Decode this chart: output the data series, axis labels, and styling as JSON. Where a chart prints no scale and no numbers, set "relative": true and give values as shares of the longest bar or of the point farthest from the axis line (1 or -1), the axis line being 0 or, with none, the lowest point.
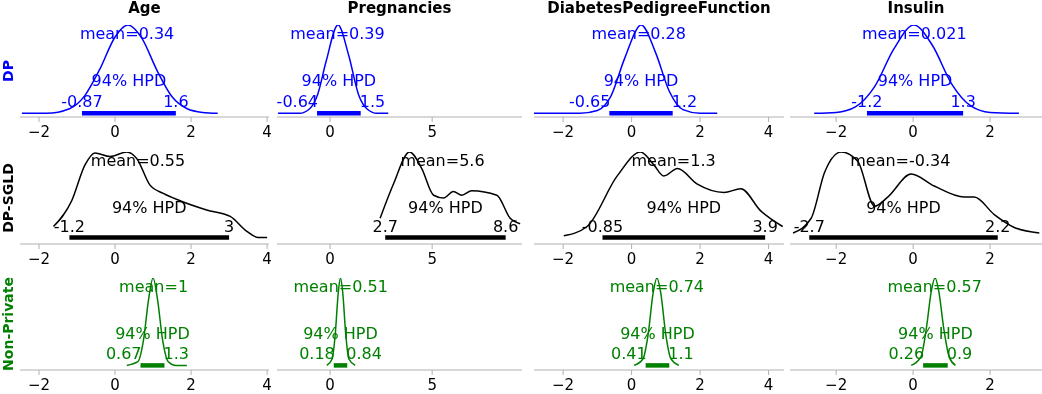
{
  "chart_data": [
    {
      "type": "line",
      "title": "Age",
      "ylabel": "DP",
      "relative": true,
      "xlim": [
        -2.5,
        4.05
      ],
      "xticks": [
        -2,
        0,
        2,
        4
      ],
      "series": [
        {
          "color": "#0000ff",
          "x": [
            -2.45,
            -1.8,
            -1.2,
            -0.8,
            -0.4,
            0,
            0.34,
            0.7,
            1.1,
            1.5,
            1.9,
            2.3,
            2.7
          ],
          "values": [
            0.04,
            0.04,
            0.09,
            0.23,
            0.52,
            0.87,
            1,
            0.86,
            0.51,
            0.22,
            0.09,
            0.05,
            0.04
          ]
        },
        {
          "color": "#0000ff",
          "x": [
            -0.87,
            1.6
          ],
          "values": [
            0.04,
            0.04
          ]
        }
      ],
      "annotations": [
        "mean=0.34",
        "94% HPD",
        {
          "text": "-0.87",
          "x": -0.87,
          "y": 0.04
        },
        {
          "text": "1.6",
          "x": 1.6,
          "y": 0.04
        }
      ]
    },
    {
      "type": "line",
      "title": "Pregnancies",
      "relative": true,
      "xlim": [
        -2.6,
        9.4
      ],
      "xticks": [
        0,
        5
      ],
      "series": [
        {
          "color": "#0000ff",
          "x": [
            -2.55,
            -1.5,
            -1,
            -0.6,
            -0.2,
            0.39,
            0.9,
            1.4,
            1.8,
            2.3,
            2.85
          ],
          "values": [
            0.04,
            0.04,
            0.09,
            0.25,
            0.6,
            1,
            0.68,
            0.24,
            0.09,
            0.04,
            0.04
          ]
        },
        {
          "color": "#0000ff",
          "x": [
            -0.64,
            1.5
          ],
          "values": [
            0.04,
            0.04
          ]
        }
      ],
      "annotations": [
        "mean=0.39",
        "94% HPD",
        {
          "text": "-0.64",
          "x": -0.64,
          "y": 0.04
        },
        {
          "text": "1.5",
          "x": 1.5,
          "y": 0.04
        }
      ]
    },
    {
      "type": "line",
      "title": "DiabetesPedigreeFunction",
      "relative": true,
      "xlim": [
        -2.85,
        4.45
      ],
      "xticks": [
        -2,
        0,
        2,
        4
      ],
      "series": [
        {
          "color": "#0000ff",
          "x": [
            -2.85,
            -1.5,
            -1,
            -0.6,
            -0.2,
            0.28,
            0.7,
            1.1,
            1.5,
            2,
            2.5
          ],
          "values": [
            0.04,
            0.04,
            0.07,
            0.23,
            0.64,
            1,
            0.7,
            0.28,
            0.08,
            0.04,
            0.04
          ]
        },
        {
          "color": "#0000ff",
          "x": [
            -0.65,
            1.2
          ],
          "values": [
            0.04,
            0.04
          ]
        }
      ],
      "annotations": [
        "mean=0.28",
        "94% HPD",
        {
          "text": "-0.65",
          "x": -0.65,
          "y": 0.04
        },
        {
          "text": "1.2",
          "x": 1.2,
          "y": 0.04
        }
      ]
    },
    {
      "type": "line",
      "title": "Insulin",
      "relative": true,
      "xlim": [
        -3.2,
        3.35
      ],
      "xticks": [
        -2,
        0,
        2
      ],
      "series": [
        {
          "color": "#0000ff",
          "x": [
            -2.57,
            -2,
            -1.5,
            -1,
            -0.5,
            0.02,
            0.5,
            1,
            1.5,
            2,
            2.75
          ],
          "values": [
            0.04,
            0.05,
            0.11,
            0.33,
            0.74,
            1,
            0.78,
            0.36,
            0.12,
            0.05,
            0.04
          ]
        },
        {
          "color": "#0000ff",
          "x": [
            -1.2,
            1.3
          ],
          "values": [
            0.04,
            0.04
          ]
        }
      ],
      "annotations": [
        "mean=0.021",
        "94% HPD",
        {
          "text": "-1.2",
          "x": -1.2,
          "y": 0.04
        },
        {
          "text": "1.3",
          "x": 1.3,
          "y": 0.04
        }
      ]
    },
    {
      "type": "line",
      "ylabel": "DP-SGLD",
      "relative": true,
      "xlim": [
        -2.5,
        4.05
      ],
      "xticks": [
        -2,
        0,
        2,
        4
      ],
      "series": [
        {
          "color": "#000000",
          "x": [
            -1.62,
            -1.14,
            -0.79,
            -0.53,
            -0.13,
            0.31,
            0.57,
            0.92,
            1.27,
            1.71,
            2.41,
            3.03,
            3.46,
            3.77,
            4.0
          ],
          "values": [
            0.19,
            0.47,
            0.86,
            0.99,
            0.95,
            1,
            0.93,
            0.64,
            0.55,
            0.47,
            0.37,
            0.3,
            0.14,
            0.07,
            0.07
          ]
        },
        {
          "color": "#000000",
          "x": [
            -1.2,
            3
          ],
          "values": [
            0.07,
            0.07
          ]
        }
      ],
      "annotations": [
        "mean=0.55",
        "94% HPD",
        {
          "text": "-1.2",
          "x": -1.2,
          "y": 0.07
        },
        {
          "text": "3",
          "x": 3,
          "y": 0.07
        }
      ]
    },
    {
      "type": "line",
      "relative": true,
      "xlim": [
        -2.6,
        9.4
      ],
      "xticks": [
        0,
        5
      ],
      "series": [
        {
          "color": "#000000",
          "x": [
            2.45,
            3.1,
            3.89,
            4.49,
            5.07,
            5.56,
            6.04,
            6.45,
            6.94,
            8.17,
            8.82,
            9.31
          ],
          "values": [
            0.28,
            0.65,
            1,
            0.82,
            0.53,
            0.5,
            0.57,
            0.53,
            0.58,
            0.53,
            0.28,
            0.22
          ]
        },
        {
          "color": "#000000",
          "x": [
            2.7,
            8.6
          ],
          "values": [
            0.07,
            0.07
          ]
        }
      ],
      "annotations": [
        "mean=5.6",
        "94% HPD",
        {
          "text": "2.7",
          "x": 2.7,
          "y": 0.07
        },
        {
          "text": "8.6",
          "x": 8.6,
          "y": 0.07
        }
      ]
    },
    {
      "type": "line",
      "relative": true,
      "xlim": [
        -2.85,
        4.45
      ],
      "xticks": [
        -2,
        0,
        2,
        4
      ],
      "series": [
        {
          "color": "#000000",
          "x": [
            -1.98,
            -1.3,
            -0.42,
            0.26,
            0.65,
            0.94,
            1.34,
            1.92,
            2.7,
            3.19,
            3.77,
            4.41
          ],
          "values": [
            0.09,
            0.19,
            0.74,
            1,
            0.86,
            0.74,
            0.82,
            0.65,
            0.56,
            0.6,
            0.36,
            0.19
          ]
        },
        {
          "color": "#000000",
          "x": [
            -0.85,
            3.9
          ],
          "values": [
            0.07,
            0.07
          ]
        }
      ],
      "annotations": [
        "mean=1.3",
        "94% HPD",
        {
          "text": "-0.85",
          "x": -0.85,
          "y": 0.07
        },
        {
          "text": "3.9",
          "x": 3.9,
          "y": 0.07
        }
      ]
    },
    {
      "type": "line",
      "relative": true,
      "xlim": [
        -3.2,
        3.35
      ],
      "xticks": [
        -2,
        0,
        2
      ],
      "series": [
        {
          "color": "#000000",
          "x": [
            -3.12,
            -2.65,
            -2.3,
            -1.87,
            -1.44,
            -1.0,
            -0.66,
            -0.05,
            0.55,
            1.33,
            1.59,
            2.11,
            2.63,
            3.28
          ],
          "values": [
            0.12,
            0.28,
            0.78,
            1,
            0.9,
            0.41,
            0.51,
            0.76,
            0.63,
            0.51,
            0.51,
            0.32,
            0.18,
            0.12
          ]
        },
        {
          "color": "#000000",
          "x": [
            -2.7,
            2.2
          ],
          "values": [
            0.07,
            0.07
          ]
        }
      ],
      "annotations": [
        "mean=-0.34",
        "94% HPD",
        {
          "text": "-2.7",
          "x": -2.7,
          "y": 0.07
        },
        {
          "text": "2.2",
          "x": 2.2,
          "y": 0.07
        }
      ]
    },
    {
      "type": "line",
      "ylabel": "Non-Private",
      "relative": true,
      "xlim": [
        -2.5,
        4.05
      ],
      "xticks": [
        -2,
        0,
        2,
        4
      ],
      "series": [
        {
          "color": "#008000",
          "x": [
            0.31,
            0.6,
            0.75,
            0.88,
            1,
            1.12,
            1.25,
            1.4,
            1.6,
            1.89
          ],
          "values": [
            0.05,
            0.09,
            0.33,
            0.76,
            1,
            0.76,
            0.33,
            0.09,
            0.05,
            0.05
          ]
        },
        {
          "color": "#008000",
          "x": [
            0.67,
            1.3
          ],
          "values": [
            0.05,
            0.05
          ]
        }
      ],
      "annotations": [
        "mean=1",
        "94% HPD",
        {
          "text": "0.67",
          "x": 0.67,
          "y": 0.05
        },
        {
          "text": "1.3",
          "x": 1.3,
          "y": 0.05
        }
      ]
    },
    {
      "type": "line",
      "relative": true,
      "xlim": [
        -2.6,
        9.4
      ],
      "xticks": [
        0,
        5
      ],
      "series": [
        {
          "color": "#008000",
          "x": [
            -0.16,
            0.1,
            0.25,
            0.4,
            0.51,
            0.62,
            0.77,
            0.92,
            1.23
          ],
          "values": [
            0.05,
            0.12,
            0.38,
            0.84,
            1,
            0.84,
            0.38,
            0.12,
            0.05
          ]
        },
        {
          "color": "#008000",
          "x": [
            0.18,
            0.84
          ],
          "values": [
            0.05,
            0.05
          ]
        }
      ],
      "annotations": [
        "mean=0.51",
        "94% HPD",
        {
          "text": "0.18",
          "x": 0.18,
          "y": 0.05
        },
        {
          "text": "0.84",
          "x": 0.84,
          "y": 0.05
        }
      ]
    },
    {
      "type": "line",
      "relative": true,
      "xlim": [
        -2.85,
        4.45
      ],
      "xticks": [
        -2,
        0,
        2,
        4
      ],
      "series": [
        {
          "color": "#008000",
          "x": [
            0.07,
            0.33,
            0.48,
            0.63,
            0.74,
            0.85,
            1.0,
            1.15,
            1.38
          ],
          "values": [
            0.05,
            0.12,
            0.38,
            0.84,
            1,
            0.84,
            0.38,
            0.12,
            0.05
          ]
        },
        {
          "color": "#008000",
          "x": [
            0.41,
            1.1
          ],
          "values": [
            0.05,
            0.05
          ]
        }
      ],
      "annotations": [
        "mean=0.74",
        "94% HPD",
        {
          "text": "0.41",
          "x": 0.41,
          "y": 0.05
        },
        {
          "text": "1.1",
          "x": 1.1,
          "y": 0.05
        }
      ]
    },
    {
      "type": "line",
      "relative": true,
      "xlim": [
        -3.2,
        3.35
      ],
      "xticks": [
        -2,
        0,
        2
      ],
      "series": [
        {
          "color": "#008000",
          "x": [
            -0.05,
            0.2,
            0.35,
            0.47,
            0.57,
            0.67,
            0.79,
            0.94,
            1.1
          ],
          "values": [
            0.05,
            0.14,
            0.47,
            0.85,
            1,
            0.85,
            0.47,
            0.14,
            0.05
          ]
        },
        {
          "color": "#008000",
          "x": [
            0.26,
            0.9
          ],
          "values": [
            0.05,
            0.05
          ]
        }
      ],
      "annotations": [
        "mean=0.57",
        "94% HPD",
        {
          "text": "0.26",
          "x": 0.26,
          "y": 0.05
        },
        {
          "text": "0.9",
          "x": 0.9,
          "y": 0.05
        }
      ]
    }
  ]
}
